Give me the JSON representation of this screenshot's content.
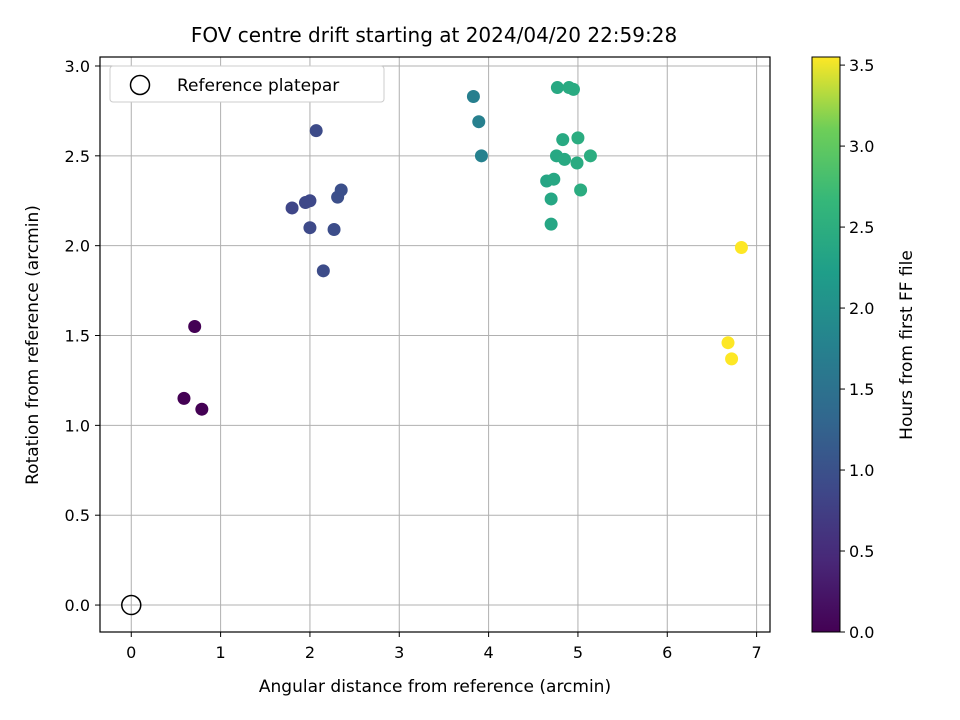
{
  "chart_data": {
    "type": "scatter",
    "title": "FOV centre drift starting at 2024/04/20 22:59:28",
    "xlabel": "Angular distance from reference (arcmin)",
    "ylabel": "Rotation from reference (arcmin)",
    "xlim": [
      -0.35,
      7.15
    ],
    "ylim": [
      -0.15,
      3.05
    ],
    "xticks": [
      "0",
      "1",
      "2",
      "3",
      "4",
      "5",
      "6",
      "7"
    ],
    "yticks": [
      "0.0",
      "0.5",
      "1.0",
      "1.5",
      "2.0",
      "2.5",
      "3.0"
    ],
    "grid": true,
    "legend": {
      "placement": "top-left",
      "entries": [
        "Reference platepar"
      ]
    },
    "reference_point": {
      "x": 0,
      "y": 0
    },
    "colorbar": {
      "label": "Hours from first FF file",
      "range": [
        0.0,
        3.55
      ],
      "ticks": [
        "0.0",
        "0.5",
        "1.0",
        "1.5",
        "2.0",
        "2.5",
        "3.0",
        "3.5"
      ],
      "colormap": "viridis"
    },
    "points": [
      {
        "x": 0.59,
        "y": 1.15,
        "hours": 0.0
      },
      {
        "x": 0.71,
        "y": 1.55,
        "hours": 0.0
      },
      {
        "x": 0.79,
        "y": 1.09,
        "hours": 0.0
      },
      {
        "x": 1.8,
        "y": 2.21,
        "hours": 0.85
      },
      {
        "x": 1.95,
        "y": 2.24,
        "hours": 0.87
      },
      {
        "x": 2.0,
        "y": 2.25,
        "hours": 0.88
      },
      {
        "x": 2.0,
        "y": 2.1,
        "hours": 0.9
      },
      {
        "x": 2.07,
        "y": 2.64,
        "hours": 0.92
      },
      {
        "x": 2.15,
        "y": 1.86,
        "hours": 0.93
      },
      {
        "x": 2.27,
        "y": 2.09,
        "hours": 0.95
      },
      {
        "x": 2.31,
        "y": 2.27,
        "hours": 0.97
      },
      {
        "x": 2.35,
        "y": 2.31,
        "hours": 0.98
      },
      {
        "x": 3.83,
        "y": 2.83,
        "hours": 1.72
      },
      {
        "x": 3.89,
        "y": 2.69,
        "hours": 1.74
      },
      {
        "x": 3.92,
        "y": 2.5,
        "hours": 1.76
      },
      {
        "x": 4.65,
        "y": 2.36,
        "hours": 2.35
      },
      {
        "x": 4.7,
        "y": 2.12,
        "hours": 2.36
      },
      {
        "x": 4.7,
        "y": 2.26,
        "hours": 2.37
      },
      {
        "x": 4.73,
        "y": 2.37,
        "hours": 2.38
      },
      {
        "x": 4.76,
        "y": 2.5,
        "hours": 2.39
      },
      {
        "x": 4.77,
        "y": 2.88,
        "hours": 2.4
      },
      {
        "x": 4.83,
        "y": 2.59,
        "hours": 2.41
      },
      {
        "x": 4.85,
        "y": 2.48,
        "hours": 2.42
      },
      {
        "x": 4.9,
        "y": 2.88,
        "hours": 2.43
      },
      {
        "x": 4.95,
        "y": 2.87,
        "hours": 2.44
      },
      {
        "x": 4.99,
        "y": 2.46,
        "hours": 2.45
      },
      {
        "x": 5.0,
        "y": 2.6,
        "hours": 2.46
      },
      {
        "x": 5.03,
        "y": 2.31,
        "hours": 2.47
      },
      {
        "x": 5.14,
        "y": 2.5,
        "hours": 2.48
      },
      {
        "x": 6.68,
        "y": 1.46,
        "hours": 3.55
      },
      {
        "x": 6.72,
        "y": 1.37,
        "hours": 3.55
      },
      {
        "x": 6.83,
        "y": 1.99,
        "hours": 3.55
      }
    ]
  }
}
